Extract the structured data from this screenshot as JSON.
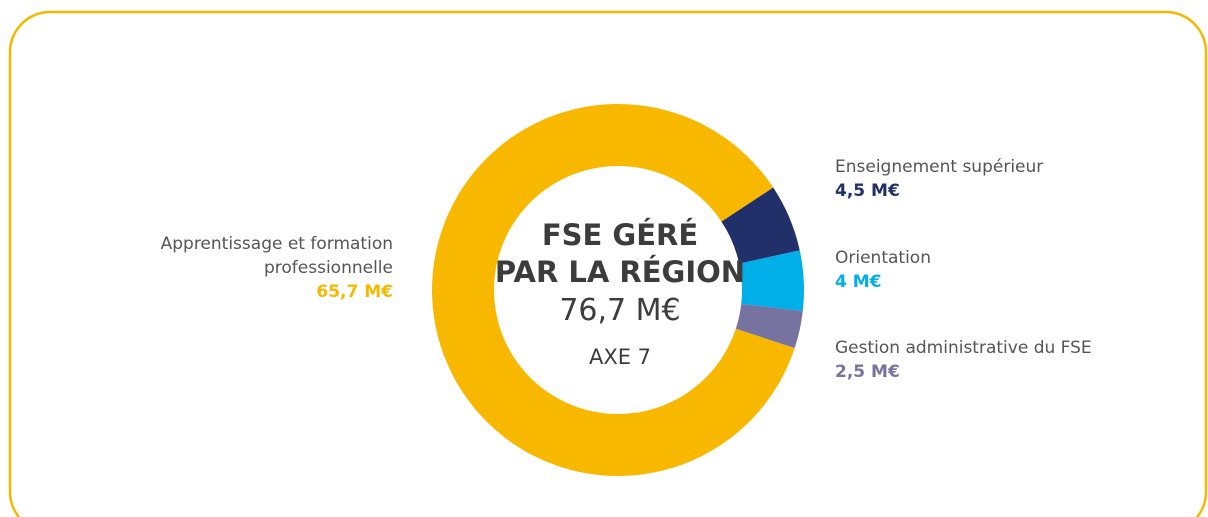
{
  "chart_data": {
    "type": "donut",
    "title_lines": [
      "FSE GÉRÉ",
      "PAR LA RÉGION"
    ],
    "total": 76.7,
    "total_label": "76,7 M€",
    "subtitle": "AXE 7",
    "categories": [
      "Apprentissage et formation professionnelle",
      "Enseignement supérieur",
      "Orientation",
      "Gestion administrative du FSE"
    ],
    "values": [
      65.7,
      4.5,
      4,
      2.5
    ],
    "value_labels": [
      "65,7 M€",
      "4,5 M€",
      "4 M€",
      "2,5 M€"
    ],
    "colors": [
      "#f9b800",
      "#22306a",
      "#00aee8",
      "#7673a0"
    ]
  }
}
